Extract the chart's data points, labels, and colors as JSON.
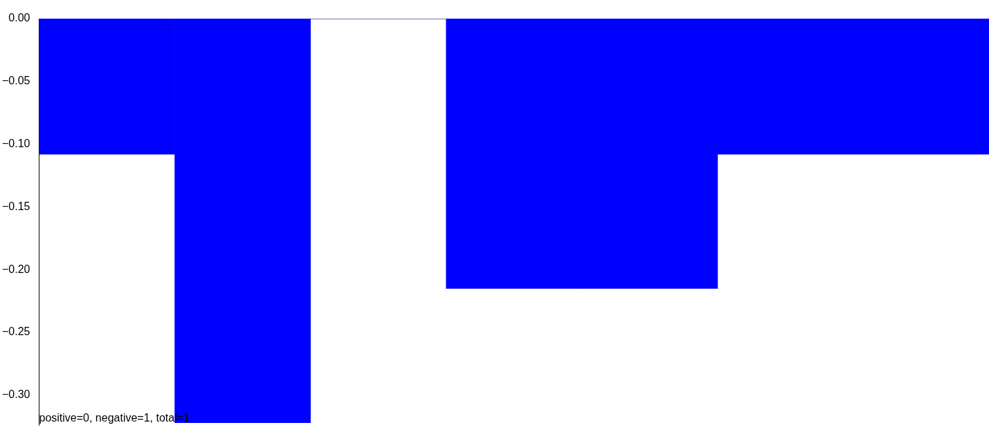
{
  "chart_data": {
    "type": "bar",
    "categories": [
      null,
      null,
      null,
      null,
      null,
      null,
      null
    ],
    "values": [
      -0.108,
      -0.322,
      0,
      -0.215,
      -0.215,
      -0.108,
      -0.108
    ],
    "color": "#0000ff",
    "ylim": [
      -0.324,
      0
    ],
    "yticks": [
      {
        "value": 0,
        "label": "0.00"
      },
      {
        "value": -0.05,
        "label": "−0.05"
      },
      {
        "value": -0.1,
        "label": "−0.10"
      },
      {
        "value": -0.15,
        "label": "−0.15"
      },
      {
        "value": -0.2,
        "label": "−0.20"
      },
      {
        "value": -0.25,
        "label": "−0.25"
      },
      {
        "value": -0.3,
        "label": "−0.30"
      }
    ],
    "tick_labels": "y",
    "grid": false,
    "legend": false,
    "annotations": [
      "positive=0, negative=1, total=1"
    ]
  }
}
